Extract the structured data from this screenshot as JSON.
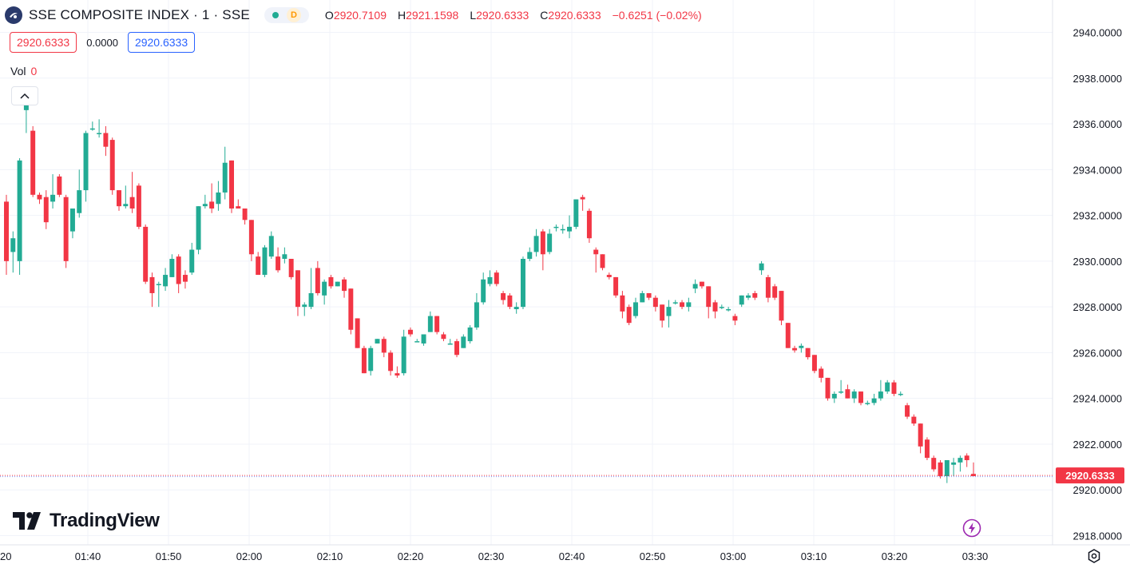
{
  "header": {
    "title": "SSE COMPOSITE INDEX · 1 · SSE",
    "interval_badge": "D",
    "ohlc": {
      "o_label": "O",
      "o_value": "2920.7109",
      "h_label": "H",
      "h_value": "2921.1598",
      "l_label": "L",
      "l_value": "2920.6333",
      "c_label": "C",
      "c_value": "2920.6333",
      "change": "−0.6251 (−0.02%)"
    }
  },
  "price_boxes": {
    "sell": "2920.6333",
    "spread": "0.0000",
    "buy": "2920.6333"
  },
  "volume": {
    "label": "Vol",
    "value": "0"
  },
  "brand": {
    "name": "TradingView"
  },
  "icons": {
    "symbol": "sse-logo-icon",
    "collapse": "chevron-up-icon",
    "lightning": "lightning-icon",
    "settings": "settings-icon"
  },
  "colors": {
    "up": "#22ab94",
    "down": "#f23645",
    "grid": "#f0f3fa",
    "text": "#131722",
    "price_line": "#f23645",
    "blue": "#2962ff"
  },
  "chart_data": {
    "type": "candlestick",
    "title": "",
    "xlabel": "",
    "ylabel": "",
    "ylim": [
      2917.3,
      2941.0
    ],
    "y_ticks": [
      "2940.0000",
      "2938.0000",
      "2936.0000",
      "2934.0000",
      "2932.0000",
      "2930.0000",
      "2928.0000",
      "2926.0000",
      "2924.0000",
      "2922.0000",
      "2920.0000",
      "2918.0000"
    ],
    "x_ticks": [
      {
        "label": "20",
        "minute": 30
      },
      {
        "label": "01:40",
        "minute": 100
      },
      {
        "label": "01:50",
        "minute": 110
      },
      {
        "label": "02:00",
        "minute": 120
      },
      {
        "label": "02:10",
        "minute": 130
      },
      {
        "label": "02:20",
        "minute": 140
      },
      {
        "label": "02:30",
        "minute": 150
      },
      {
        "label": "02:40",
        "minute": 160
      },
      {
        "label": "02:50",
        "minute": 170
      },
      {
        "label": "03:00",
        "minute": 180
      },
      {
        "label": "03:10",
        "minute": 190
      },
      {
        "label": "03:20",
        "minute": 200
      },
      {
        "label": "03:30",
        "minute": 210
      }
    ],
    "last_price": 2920.6333,
    "last_price_label": "2920.6333",
    "grid": true,
    "candles": [
      [
        2932.6,
        2930.0,
        2932.9,
        2929.4
      ],
      [
        2930.4,
        2931.0,
        2931.3,
        2929.5
      ],
      [
        2930.0,
        2934.4,
        2934.5,
        2929.4
      ],
      [
        2936.6,
        2937.3,
        2937.5,
        2935.6
      ],
      [
        2935.7,
        2932.9,
        2935.9,
        2932.8
      ],
      [
        2932.9,
        2932.7,
        2933.0,
        2932.5
      ],
      [
        2932.8,
        2931.7,
        2933.1,
        2931.4
      ],
      [
        2932.6,
        2932.9,
        2933.8,
        2932.3
      ],
      [
        2933.7,
        2932.9,
        2933.8,
        2932.8
      ],
      [
        2932.8,
        2930.0,
        2932.9,
        2929.7
      ],
      [
        2931.3,
        2932.3,
        2932.3,
        2931.0
      ],
      [
        2932.1,
        2933.1,
        2934.0,
        2931.9
      ],
      [
        2933.1,
        2935.6,
        2935.7,
        2932.6
      ],
      [
        2935.8,
        2935.8,
        2936.1,
        2935.7
      ],
      [
        2935.6,
        2935.6,
        2936.2,
        2935.4
      ],
      [
        2935.6,
        2935.0,
        2935.9,
        2934.6
      ],
      [
        2935.3,
        2933.1,
        2935.4,
        2932.9
      ],
      [
        2933.1,
        2932.4,
        2933.1,
        2932.2
      ],
      [
        2932.4,
        2932.5,
        2933.3,
        2932.3
      ],
      [
        2932.8,
        2932.3,
        2933.9,
        2932.1
      ],
      [
        2933.3,
        2931.5,
        2933.4,
        2931.4
      ],
      [
        2931.5,
        2929.1,
        2931.6,
        2929.0
      ],
      [
        2929.3,
        2928.6,
        2929.5,
        2928.0
      ],
      [
        2929.0,
        2929.0,
        2929.1,
        2928.0
      ],
      [
        2928.9,
        2929.4,
        2929.7,
        2928.7
      ],
      [
        2929.3,
        2930.1,
        2930.3,
        2929.3
      ],
      [
        2930.2,
        2929.0,
        2930.3,
        2928.6
      ],
      [
        2929.4,
        2929.1,
        2929.6,
        2928.8
      ],
      [
        2929.5,
        2930.5,
        2930.8,
        2929.4
      ],
      [
        2930.5,
        2932.4,
        2932.4,
        2930.3
      ],
      [
        2932.4,
        2932.5,
        2932.9,
        2932.3
      ],
      [
        2932.6,
        2932.3,
        2933.4,
        2932.1
      ],
      [
        2932.5,
        2933.0,
        2933.5,
        2932.2
      ],
      [
        2933.0,
        2934.3,
        2935.0,
        2932.7
      ],
      [
        2934.4,
        2932.3,
        2934.4,
        2932.1
      ],
      [
        2932.4,
        2932.3,
        2932.7,
        2932.3
      ],
      [
        2932.3,
        2931.8,
        2932.3,
        2931.6
      ],
      [
        2931.8,
        2930.3,
        2931.8,
        2930.0
      ],
      [
        2930.2,
        2929.4,
        2930.4,
        2929.4
      ],
      [
        2929.4,
        2930.6,
        2930.7,
        2929.3
      ],
      [
        2930.2,
        2931.1,
        2931.3,
        2930.1
      ],
      [
        2930.2,
        2929.6,
        2930.6,
        2929.5
      ],
      [
        2930.1,
        2930.3,
        2930.6,
        2929.9
      ],
      [
        2930.1,
        2929.3,
        2930.1,
        2929.2
      ],
      [
        2929.6,
        2928.0,
        2929.6,
        2927.6
      ],
      [
        2928.0,
        2928.1,
        2928.2,
        2927.6
      ],
      [
        2928.0,
        2928.6,
        2929.7,
        2927.9
      ],
      [
        2929.7,
        2928.6,
        2930.0,
        2928.5
      ],
      [
        2928.5,
        2929.1,
        2929.2,
        2928.1
      ],
      [
        2929.3,
        2928.9,
        2929.4,
        2928.8
      ],
      [
        2928.9,
        2929.1,
        2929.1,
        2928.9
      ],
      [
        2929.2,
        2928.7,
        2929.3,
        2928.4
      ],
      [
        2928.8,
        2927.0,
        2928.8,
        2926.8
      ],
      [
        2927.5,
        2926.2,
        2927.5,
        2926.2
      ],
      [
        2926.2,
        2925.1,
        2926.3,
        2925.1
      ],
      [
        2925.2,
        2926.2,
        2926.3,
        2925.0
      ],
      [
        2926.4,
        2926.6,
        2926.6,
        2926.4
      ],
      [
        2926.6,
        2926.0,
        2926.7,
        2925.8
      ],
      [
        2926.0,
        2925.2,
        2926.1,
        2925.0
      ],
      [
        2925.1,
        2925.0,
        2925.4,
        2924.9
      ],
      [
        2925.1,
        2926.7,
        2927.0,
        2925.0
      ],
      [
        2927.0,
        2926.8,
        2927.1,
        2926.7
      ],
      [
        2926.5,
        2926.5,
        2926.6,
        2926.5
      ],
      [
        2926.4,
        2926.8,
        2926.8,
        2926.3
      ],
      [
        2926.9,
        2927.6,
        2927.8,
        2926.9
      ],
      [
        2927.6,
        2926.9,
        2927.6,
        2926.8
      ],
      [
        2926.8,
        2926.6,
        2926.9,
        2926.5
      ],
      [
        2926.4,
        2926.4,
        2926.6,
        2926.4
      ],
      [
        2926.5,
        2925.9,
        2926.6,
        2925.8
      ],
      [
        2926.2,
        2926.7,
        2926.8,
        2926.2
      ],
      [
        2926.5,
        2927.1,
        2927.2,
        2926.4
      ],
      [
        2927.1,
        2928.2,
        2928.6,
        2927.0
      ],
      [
        2928.2,
        2929.2,
        2929.5,
        2928.1
      ],
      [
        2929.0,
        2929.3,
        2929.6,
        2928.9
      ],
      [
        2929.5,
        2929.0,
        2929.6,
        2928.9
      ],
      [
        2928.6,
        2928.3,
        2928.7,
        2928.1
      ],
      [
        2928.5,
        2928.0,
        2928.6,
        2927.9
      ],
      [
        2927.9,
        2928.0,
        2928.2,
        2927.7
      ],
      [
        2928.0,
        2930.1,
        2930.2,
        2927.9
      ],
      [
        2930.1,
        2930.4,
        2930.6,
        2930.0
      ],
      [
        2930.4,
        2931.1,
        2931.4,
        2930.2
      ],
      [
        2931.3,
        2930.3,
        2931.4,
        2929.6
      ],
      [
        2930.4,
        2931.2,
        2931.4,
        2930.3
      ],
      [
        2931.5,
        2931.5,
        2931.6,
        2931.3
      ],
      [
        2931.4,
        2931.4,
        2931.6,
        2931.2
      ],
      [
        2931.3,
        2931.5,
        2932.0,
        2931.0
      ],
      [
        2931.5,
        2932.7,
        2932.7,
        2931.4
      ],
      [
        2932.8,
        2932.7,
        2932.9,
        2932.2
      ],
      [
        2932.2,
        2931.0,
        2932.3,
        2930.8
      ],
      [
        2930.5,
        2930.3,
        2930.6,
        2929.5
      ],
      [
        2930.3,
        2929.7,
        2930.3,
        2929.6
      ],
      [
        2929.4,
        2929.3,
        2929.5,
        2929.2
      ],
      [
        2929.3,
        2928.5,
        2929.3,
        2928.4
      ],
      [
        2928.5,
        2927.8,
        2928.7,
        2927.5
      ],
      [
        2928.0,
        2927.3,
        2928.1,
        2927.2
      ],
      [
        2927.6,
        2928.2,
        2928.4,
        2927.5
      ],
      [
        2928.2,
        2928.6,
        2928.7,
        2928.2
      ],
      [
        2928.6,
        2928.4,
        2928.6,
        2928.3
      ],
      [
        2928.4,
        2928.0,
        2928.5,
        2927.8
      ],
      [
        2928.1,
        2927.4,
        2928.1,
        2927.1
      ],
      [
        2927.6,
        2928.0,
        2928.3,
        2927.1
      ],
      [
        2928.2,
        2928.2,
        2928.3,
        2928.1
      ],
      [
        2928.2,
        2928.0,
        2928.3,
        2927.9
      ],
      [
        2928.0,
        2928.2,
        2928.4,
        2927.8
      ],
      [
        2928.8,
        2929.0,
        2929.2,
        2928.6
      ],
      [
        2929.1,
        2928.9,
        2929.1,
        2928.8
      ],
      [
        2928.9,
        2928.0,
        2928.9,
        2927.5
      ],
      [
        2928.2,
        2927.8,
        2928.3,
        2927.5
      ],
      [
        2928.0,
        2928.0,
        2928.1,
        2927.9
      ],
      [
        2927.9,
        2927.9,
        2928.0,
        2927.8
      ],
      [
        2927.6,
        2927.4,
        2927.7,
        2927.2
      ],
      [
        2928.1,
        2928.5,
        2928.5,
        2928.0
      ],
      [
        2928.4,
        2928.5,
        2928.6,
        2928.3
      ],
      [
        2928.6,
        2928.4,
        2928.7,
        2928.3
      ],
      [
        2929.6,
        2929.9,
        2930.0,
        2929.4
      ],
      [
        2929.3,
        2928.4,
        2929.4,
        2928.2
      ],
      [
        2928.9,
        2928.4,
        2929.0,
        2928.3
      ],
      [
        2928.7,
        2927.4,
        2928.7,
        2927.2
      ],
      [
        2927.3,
        2926.2,
        2927.3,
        2926.2
      ],
      [
        2926.2,
        2926.1,
        2926.3,
        2926.0
      ],
      [
        2926.2,
        2926.3,
        2926.4,
        2926.0
      ],
      [
        2926.2,
        2925.8,
        2926.2,
        2925.7
      ],
      [
        2925.9,
        2925.2,
        2925.9,
        2925.1
      ],
      [
        2925.3,
        2924.9,
        2925.4,
        2924.7
      ],
      [
        2924.9,
        2924.0,
        2924.9,
        2923.9
      ],
      [
        2924.0,
        2924.2,
        2924.3,
        2923.8
      ],
      [
        2924.3,
        2924.3,
        2924.8,
        2924.2
      ],
      [
        2924.4,
        2924.0,
        2924.6,
        2924.0
      ],
      [
        2924.0,
        2924.3,
        2924.4,
        2923.8
      ],
      [
        2924.3,
        2923.8,
        2924.3,
        2923.7
      ],
      [
        2923.8,
        2923.8,
        2923.9,
        2923.7
      ],
      [
        2923.8,
        2924.0,
        2924.2,
        2923.7
      ],
      [
        2924.0,
        2924.3,
        2924.8,
        2923.9
      ],
      [
        2924.3,
        2924.7,
        2924.8,
        2924.2
      ],
      [
        2924.7,
        2924.2,
        2924.8,
        2924.1
      ],
      [
        2924.2,
        2924.2,
        2924.3,
        2924.1
      ],
      [
        2923.7,
        2923.2,
        2923.8,
        2923.1
      ],
      [
        2923.2,
        2922.9,
        2923.3,
        2922.8
      ],
      [
        2922.9,
        2921.9,
        2922.9,
        2921.6
      ],
      [
        2922.2,
        2921.4,
        2922.3,
        2921.3
      ],
      [
        2921.4,
        2920.9,
        2921.5,
        2920.8
      ],
      [
        2921.2,
        2920.6,
        2921.3,
        2920.5
      ],
      [
        2920.6,
        2921.3,
        2921.3,
        2920.3
      ],
      [
        2921.1,
        2921.2,
        2921.4,
        2920.6
      ],
      [
        2921.2,
        2921.4,
        2921.5,
        2920.8
      ],
      [
        2921.5,
        2921.3,
        2921.6,
        2921.0
      ],
      [
        2920.7,
        2920.6,
        2921.2,
        2920.6
      ]
    ]
  }
}
